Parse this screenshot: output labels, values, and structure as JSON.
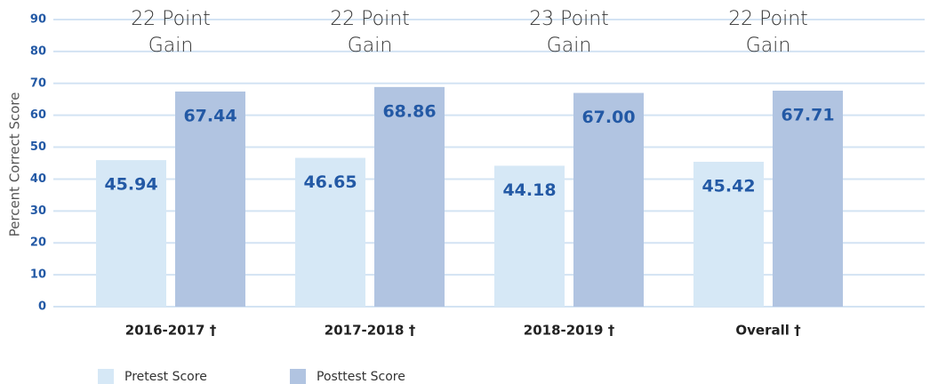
{
  "chart_data": {
    "type": "bar",
    "categories": [
      "2016-2017 †",
      "2017-2018 †",
      "2018-2019 †",
      "Overall †"
    ],
    "series": [
      {
        "name": "Pretest Score",
        "color": "#d6e8f6",
        "values": [
          45.94,
          46.65,
          44.18,
          45.42
        ],
        "value_labels": [
          "45.94",
          "46.65",
          "44.18",
          "45.42"
        ]
      },
      {
        "name": "Posttest Score",
        "color": "#b1c4e1",
        "values": [
          67.44,
          68.86,
          67.0,
          67.71
        ],
        "value_labels": [
          "67.44",
          "68.86",
          "67.00",
          "67.71"
        ]
      }
    ],
    "annotations": [
      [
        "22 Point",
        "Gain"
      ],
      [
        "22 Point",
        "Gain"
      ],
      [
        "23 Point",
        "Gain"
      ],
      [
        "22 Point",
        "Gain"
      ]
    ],
    "ylabel": "Percent Correct Score",
    "ylim": [
      0,
      90
    ],
    "yticks": [
      0,
      10,
      20,
      30,
      40,
      50,
      60,
      70,
      80,
      90
    ],
    "grid": true
  }
}
